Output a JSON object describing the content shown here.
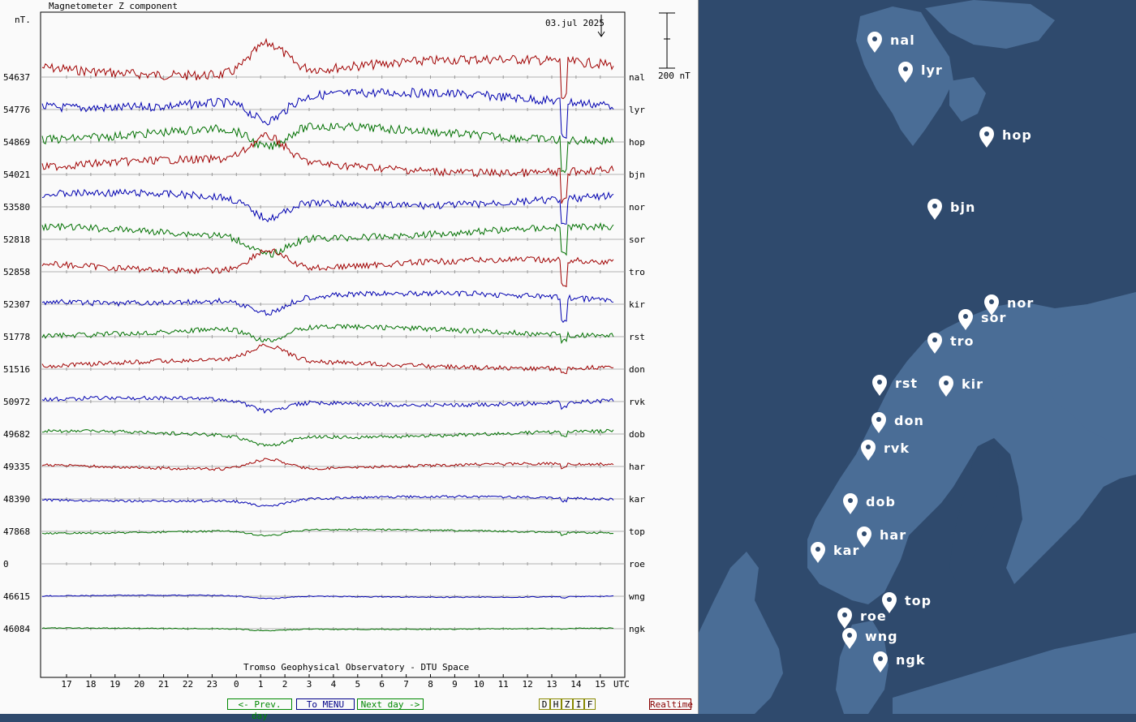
{
  "chart_data": {
    "type": "line",
    "title": "Magnetometer Z component",
    "date": "03.jul 2025",
    "ylabel": "nT.",
    "scale_label": "200 nT",
    "xlabel": "UTC",
    "x_ticks": [
      "17",
      "18",
      "19",
      "20",
      "21",
      "22",
      "23",
      "0",
      "1",
      "2",
      "3",
      "4",
      "5",
      "6",
      "7",
      "8",
      "9",
      "10",
      "11",
      "12",
      "13",
      "14",
      "15"
    ],
    "watermark": "Tromso Geophysical Observatory - DTU Space",
    "series": [
      {
        "name": "nal",
        "baseline": "54637",
        "color": "#a00000"
      },
      {
        "name": "lyr",
        "baseline": "54776",
        "color": "#0000b0"
      },
      {
        "name": "hop",
        "baseline": "54869",
        "color": "#007000"
      },
      {
        "name": "bjn",
        "baseline": "54021",
        "color": "#a00000"
      },
      {
        "name": "nor",
        "baseline": "53580",
        "color": "#0000b0"
      },
      {
        "name": "sor",
        "baseline": "52818",
        "color": "#007000"
      },
      {
        "name": "tro",
        "baseline": "52858",
        "color": "#a00000"
      },
      {
        "name": "kir",
        "baseline": "52307",
        "color": "#0000b0"
      },
      {
        "name": "rst",
        "baseline": "51778",
        "color": "#007000"
      },
      {
        "name": "don",
        "baseline": "51516",
        "color": "#a00000"
      },
      {
        "name": "rvk",
        "baseline": "50972",
        "color": "#0000b0"
      },
      {
        "name": "dob",
        "baseline": "49682",
        "color": "#007000"
      },
      {
        "name": "har",
        "baseline": "49335",
        "color": "#a00000"
      },
      {
        "name": "kar",
        "baseline": "48390",
        "color": "#0000b0"
      },
      {
        "name": "top",
        "baseline": "47868",
        "color": "#007000"
      },
      {
        "name": "roe",
        "baseline": "0",
        "color": "#a00000"
      },
      {
        "name": "wng",
        "baseline": "46615",
        "color": "#0000b0"
      },
      {
        "name": "ngk",
        "baseline": "46084",
        "color": "#007000"
      }
    ]
  },
  "nav": {
    "prev": "<- Prev. day",
    "menu": "To MENU",
    "next": "Next day ->",
    "components": [
      "D",
      "H",
      "Z",
      "I",
      "F"
    ],
    "realtime": "Realtime"
  },
  "map": {
    "stations": [
      "nal",
      "lyr",
      "hop",
      "bjn",
      "nor",
      "sor",
      "tro",
      "rst",
      "kir",
      "don",
      "rvk",
      "dob",
      "har",
      "kar",
      "top",
      "roe",
      "wng",
      "ngk"
    ]
  }
}
